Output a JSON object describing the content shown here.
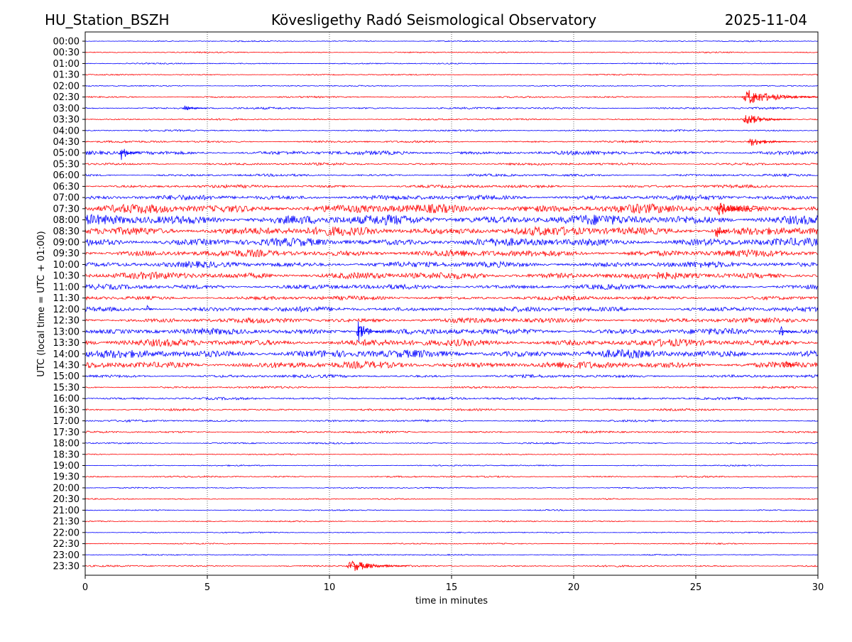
{
  "chart_data": {
    "type": "helicorder",
    "station": "HU_Station_BSZH",
    "title": "Kövesligethy Radó Seismological Observatory",
    "date": "2025-11-04",
    "xlabel": "time in minutes",
    "ylabel": "UTC (local time = UTC + 01:00)",
    "xlim": [
      0,
      30
    ],
    "xticks": [
      0,
      5,
      10,
      15,
      20,
      25,
      30
    ],
    "grid": true,
    "colors": [
      "#0000ff",
      "#ff0000"
    ],
    "categories": [
      "00:00",
      "00:30",
      "01:00",
      "01:30",
      "02:00",
      "02:30",
      "03:00",
      "03:30",
      "04:00",
      "04:30",
      "05:00",
      "05:30",
      "06:00",
      "06:30",
      "07:00",
      "07:30",
      "08:00",
      "08:30",
      "09:00",
      "09:30",
      "10:00",
      "10:30",
      "11:00",
      "11:30",
      "12:00",
      "12:30",
      "13:00",
      "13:30",
      "14:00",
      "14:30",
      "15:00",
      "15:30",
      "16:00",
      "16:30",
      "17:00",
      "17:30",
      "18:00",
      "18:30",
      "19:00",
      "19:30",
      "20:00",
      "20:30",
      "21:00",
      "21:30",
      "22:00",
      "22:30",
      "23:00",
      "23:30"
    ],
    "values": [
      0.06,
      0.06,
      0.06,
      0.06,
      0.06,
      0.08,
      0.1,
      0.08,
      0.08,
      0.1,
      0.2,
      0.12,
      0.12,
      0.15,
      0.25,
      0.45,
      0.5,
      0.45,
      0.4,
      0.35,
      0.3,
      0.35,
      0.25,
      0.2,
      0.25,
      0.25,
      0.3,
      0.35,
      0.4,
      0.35,
      0.15,
      0.1,
      0.12,
      0.1,
      0.1,
      0.1,
      0.08,
      0.06,
      0.06,
      0.08,
      0.06,
      0.06,
      0.06,
      0.06,
      0.06,
      0.06,
      0.06,
      0.08
    ],
    "events": [
      {
        "row": 5,
        "minute": 26.9,
        "duration": 3.1,
        "amplitude": 0.9
      },
      {
        "row": 6,
        "minute": 4,
        "duration": 1,
        "amplitude": 0.3
      },
      {
        "row": 7,
        "minute": 26.9,
        "duration": 2,
        "amplitude": 0.7
      },
      {
        "row": 9,
        "minute": 27.1,
        "duration": 2,
        "amplitude": 0.5
      },
      {
        "row": 10,
        "minute": 1.4,
        "duration": 0.8,
        "amplitude": 0.9
      },
      {
        "row": 15,
        "minute": 25.8,
        "duration": 2,
        "amplitude": 0.8
      },
      {
        "row": 17,
        "minute": 25.8,
        "duration": 0.5,
        "amplitude": 1.1
      },
      {
        "row": 24,
        "minute": 2.5,
        "duration": 0.3,
        "amplitude": 0.5
      },
      {
        "row": 26,
        "minute": 11.1,
        "duration": 1,
        "amplitude": 1.3
      },
      {
        "row": 26,
        "minute": 28.4,
        "duration": 0.7,
        "amplitude": 0.7
      },
      {
        "row": 29,
        "minute": 28.6,
        "duration": 0.6,
        "amplitude": 0.6
      },
      {
        "row": 47,
        "minute": 10.7,
        "duration": 2.5,
        "amplitude": 0.7
      }
    ]
  }
}
